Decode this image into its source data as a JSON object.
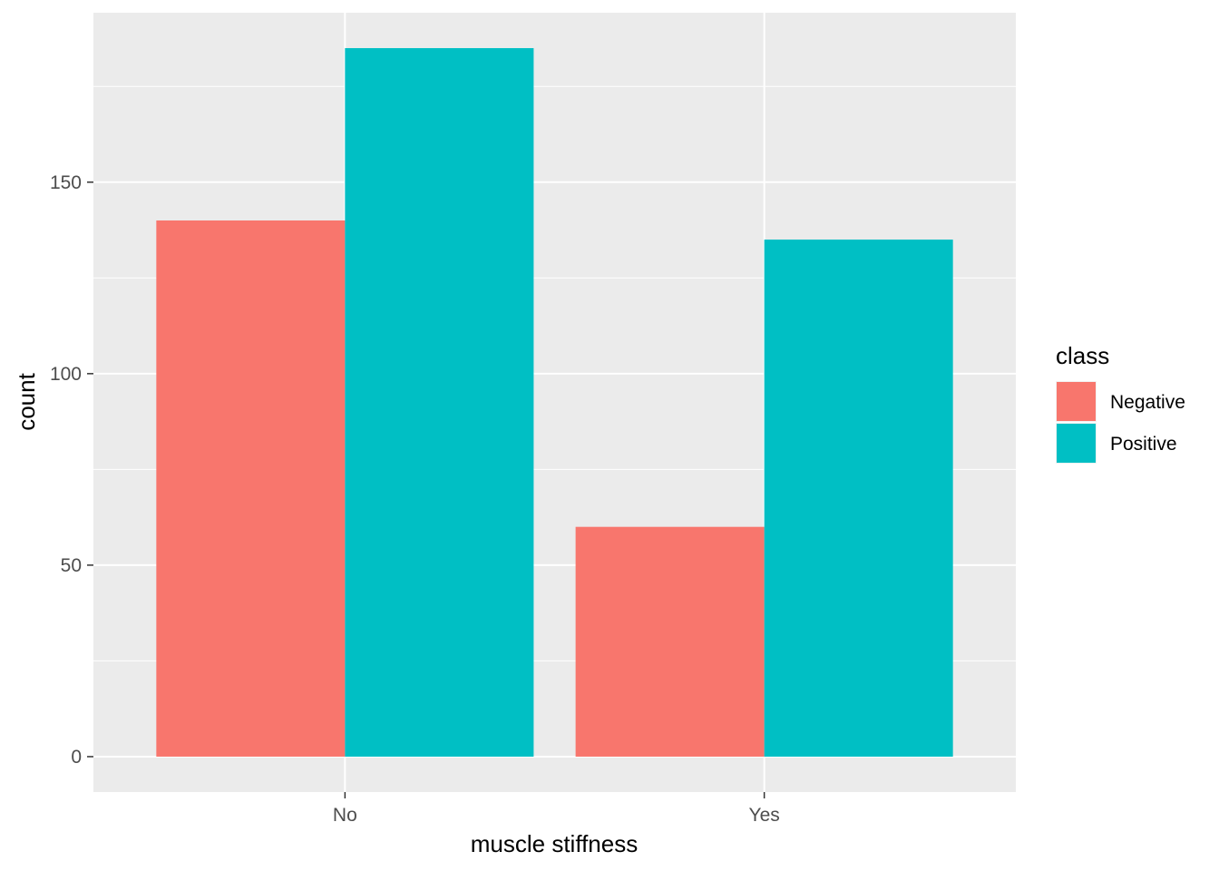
{
  "chart_data": {
    "type": "bar",
    "xlabel": "muscle stiffness",
    "ylabel": "count",
    "categories": [
      "No",
      "Yes"
    ],
    "series": [
      {
        "name": "Negative",
        "color": "#F8766D",
        "values": [
          140,
          60
        ]
      },
      {
        "name": "Positive",
        "color": "#00BFC4",
        "values": [
          185,
          135
        ]
      }
    ],
    "ylim": [
      -9.25,
      194.25
    ],
    "yticks": [
      0,
      50,
      100,
      150
    ],
    "ytick_labels": [
      "0",
      "50",
      "100",
      "150"
    ],
    "grid": true,
    "panel_background": "#EBEBEB",
    "legend": {
      "title": "class",
      "position": "right"
    }
  }
}
